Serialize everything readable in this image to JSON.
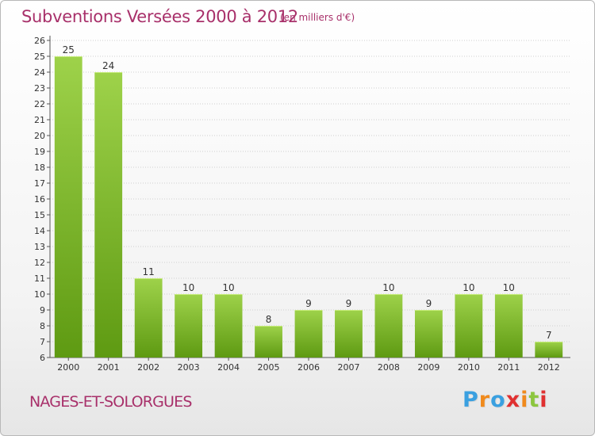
{
  "chart_data": {
    "type": "bar",
    "title": "Subventions Versées 2000 à 2012",
    "subtitle": "(en milliers d'€)",
    "categories": [
      "2000",
      "2001",
      "2002",
      "2003",
      "2004",
      "2005",
      "2006",
      "2007",
      "2008",
      "2009",
      "2010",
      "2011",
      "2012"
    ],
    "values": [
      25,
      24,
      11,
      10,
      10,
      8,
      9,
      9,
      10,
      9,
      10,
      10,
      7
    ],
    "ylim": [
      6,
      26
    ],
    "yticks": [
      6,
      7,
      8,
      9,
      10,
      11,
      12,
      13,
      14,
      15,
      16,
      17,
      18,
      19,
      20,
      21,
      22,
      23,
      24,
      25,
      26
    ],
    "grid": true,
    "colors": {
      "bar_top": "#9ed24a",
      "bar_bottom": "#5e9a12",
      "grid": "#cfcfcf",
      "text": "#a8306a"
    }
  },
  "footer": {
    "location": "NAGES-ET-SOLORGUES",
    "logo_letters": [
      "P",
      "r",
      "o",
      "x",
      "i",
      "t",
      "i"
    ],
    "logo_colors": [
      "#3aa0e0",
      "#f08a1c",
      "#3aa0e0",
      "#e03030",
      "#f08a1c",
      "#8cc63e",
      "#e03030"
    ]
  }
}
